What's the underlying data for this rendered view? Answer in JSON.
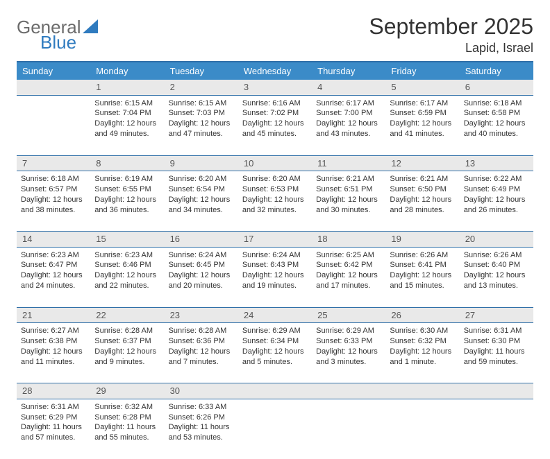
{
  "brand": {
    "word1": "General",
    "word2": "Blue"
  },
  "title": "September 2025",
  "location": "Lapid, Israel",
  "colors": {
    "header_bg": "#3b8bc8",
    "header_text": "#ffffff",
    "rule": "#2f6fa8",
    "daynum_bg": "#e9e9e9",
    "text": "#333333",
    "logo_gray": "#6b6b6b",
    "logo_blue": "#2f7bbf"
  },
  "dow": [
    "Sunday",
    "Monday",
    "Tuesday",
    "Wednesday",
    "Thursday",
    "Friday",
    "Saturday"
  ],
  "weeks": [
    {
      "nums": [
        "",
        "1",
        "2",
        "3",
        "4",
        "5",
        "6"
      ],
      "cells": [
        {
          "sunrise": "",
          "sunset": "",
          "daylight": ""
        },
        {
          "sunrise": "Sunrise: 6:15 AM",
          "sunset": "Sunset: 7:04 PM",
          "daylight": "Daylight: 12 hours and 49 minutes."
        },
        {
          "sunrise": "Sunrise: 6:15 AM",
          "sunset": "Sunset: 7:03 PM",
          "daylight": "Daylight: 12 hours and 47 minutes."
        },
        {
          "sunrise": "Sunrise: 6:16 AM",
          "sunset": "Sunset: 7:02 PM",
          "daylight": "Daylight: 12 hours and 45 minutes."
        },
        {
          "sunrise": "Sunrise: 6:17 AM",
          "sunset": "Sunset: 7:00 PM",
          "daylight": "Daylight: 12 hours and 43 minutes."
        },
        {
          "sunrise": "Sunrise: 6:17 AM",
          "sunset": "Sunset: 6:59 PM",
          "daylight": "Daylight: 12 hours and 41 minutes."
        },
        {
          "sunrise": "Sunrise: 6:18 AM",
          "sunset": "Sunset: 6:58 PM",
          "daylight": "Daylight: 12 hours and 40 minutes."
        }
      ]
    },
    {
      "nums": [
        "7",
        "8",
        "9",
        "10",
        "11",
        "12",
        "13"
      ],
      "cells": [
        {
          "sunrise": "Sunrise: 6:18 AM",
          "sunset": "Sunset: 6:57 PM",
          "daylight": "Daylight: 12 hours and 38 minutes."
        },
        {
          "sunrise": "Sunrise: 6:19 AM",
          "sunset": "Sunset: 6:55 PM",
          "daylight": "Daylight: 12 hours and 36 minutes."
        },
        {
          "sunrise": "Sunrise: 6:20 AM",
          "sunset": "Sunset: 6:54 PM",
          "daylight": "Daylight: 12 hours and 34 minutes."
        },
        {
          "sunrise": "Sunrise: 6:20 AM",
          "sunset": "Sunset: 6:53 PM",
          "daylight": "Daylight: 12 hours and 32 minutes."
        },
        {
          "sunrise": "Sunrise: 6:21 AM",
          "sunset": "Sunset: 6:51 PM",
          "daylight": "Daylight: 12 hours and 30 minutes."
        },
        {
          "sunrise": "Sunrise: 6:21 AM",
          "sunset": "Sunset: 6:50 PM",
          "daylight": "Daylight: 12 hours and 28 minutes."
        },
        {
          "sunrise": "Sunrise: 6:22 AM",
          "sunset": "Sunset: 6:49 PM",
          "daylight": "Daylight: 12 hours and 26 minutes."
        }
      ]
    },
    {
      "nums": [
        "14",
        "15",
        "16",
        "17",
        "18",
        "19",
        "20"
      ],
      "cells": [
        {
          "sunrise": "Sunrise: 6:23 AM",
          "sunset": "Sunset: 6:47 PM",
          "daylight": "Daylight: 12 hours and 24 minutes."
        },
        {
          "sunrise": "Sunrise: 6:23 AM",
          "sunset": "Sunset: 6:46 PM",
          "daylight": "Daylight: 12 hours and 22 minutes."
        },
        {
          "sunrise": "Sunrise: 6:24 AM",
          "sunset": "Sunset: 6:45 PM",
          "daylight": "Daylight: 12 hours and 20 minutes."
        },
        {
          "sunrise": "Sunrise: 6:24 AM",
          "sunset": "Sunset: 6:43 PM",
          "daylight": "Daylight: 12 hours and 19 minutes."
        },
        {
          "sunrise": "Sunrise: 6:25 AM",
          "sunset": "Sunset: 6:42 PM",
          "daylight": "Daylight: 12 hours and 17 minutes."
        },
        {
          "sunrise": "Sunrise: 6:26 AM",
          "sunset": "Sunset: 6:41 PM",
          "daylight": "Daylight: 12 hours and 15 minutes."
        },
        {
          "sunrise": "Sunrise: 6:26 AM",
          "sunset": "Sunset: 6:40 PM",
          "daylight": "Daylight: 12 hours and 13 minutes."
        }
      ]
    },
    {
      "nums": [
        "21",
        "22",
        "23",
        "24",
        "25",
        "26",
        "27"
      ],
      "cells": [
        {
          "sunrise": "Sunrise: 6:27 AM",
          "sunset": "Sunset: 6:38 PM",
          "daylight": "Daylight: 12 hours and 11 minutes."
        },
        {
          "sunrise": "Sunrise: 6:28 AM",
          "sunset": "Sunset: 6:37 PM",
          "daylight": "Daylight: 12 hours and 9 minutes."
        },
        {
          "sunrise": "Sunrise: 6:28 AM",
          "sunset": "Sunset: 6:36 PM",
          "daylight": "Daylight: 12 hours and 7 minutes."
        },
        {
          "sunrise": "Sunrise: 6:29 AM",
          "sunset": "Sunset: 6:34 PM",
          "daylight": "Daylight: 12 hours and 5 minutes."
        },
        {
          "sunrise": "Sunrise: 6:29 AM",
          "sunset": "Sunset: 6:33 PM",
          "daylight": "Daylight: 12 hours and 3 minutes."
        },
        {
          "sunrise": "Sunrise: 6:30 AM",
          "sunset": "Sunset: 6:32 PM",
          "daylight": "Daylight: 12 hours and 1 minute."
        },
        {
          "sunrise": "Sunrise: 6:31 AM",
          "sunset": "Sunset: 6:30 PM",
          "daylight": "Daylight: 11 hours and 59 minutes."
        }
      ]
    },
    {
      "nums": [
        "28",
        "29",
        "30",
        "",
        "",
        "",
        ""
      ],
      "cells": [
        {
          "sunrise": "Sunrise: 6:31 AM",
          "sunset": "Sunset: 6:29 PM",
          "daylight": "Daylight: 11 hours and 57 minutes."
        },
        {
          "sunrise": "Sunrise: 6:32 AM",
          "sunset": "Sunset: 6:28 PM",
          "daylight": "Daylight: 11 hours and 55 minutes."
        },
        {
          "sunrise": "Sunrise: 6:33 AM",
          "sunset": "Sunset: 6:26 PM",
          "daylight": "Daylight: 11 hours and 53 minutes."
        },
        {
          "sunrise": "",
          "sunset": "",
          "daylight": ""
        },
        {
          "sunrise": "",
          "sunset": "",
          "daylight": ""
        },
        {
          "sunrise": "",
          "sunset": "",
          "daylight": ""
        },
        {
          "sunrise": "",
          "sunset": "",
          "daylight": ""
        }
      ]
    }
  ]
}
